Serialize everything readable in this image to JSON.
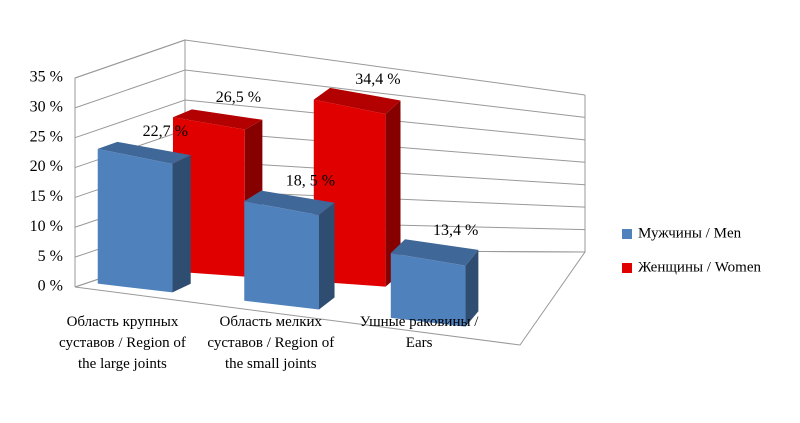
{
  "chart_data": {
    "type": "bar3d",
    "categories": [
      "Область крупных суставов / Region of the large joints",
      "Область мелких суставов / Region of the small joints",
      "Ушные раковины / Ears"
    ],
    "series": [
      {
        "name": "Мужчины / Men",
        "color": "#4f81bd",
        "values": [
          22.7,
          18.5,
          13.4
        ],
        "value_labels": [
          "22,7 %",
          "18, 5 %",
          "13,4 %"
        ]
      },
      {
        "name": "Женщины / Women",
        "color": "#e00000",
        "values": [
          26.5,
          34.4,
          null
        ],
        "value_labels": [
          "26,5 %",
          "34,4 %",
          null
        ]
      }
    ],
    "ylim": [
      0,
      35
    ],
    "yticks": [
      {
        "value": 0,
        "label": "0 %"
      },
      {
        "value": 5,
        "label": "5 %"
      },
      {
        "value": 10,
        "label": "10 %"
      },
      {
        "value": 15,
        "label": "15 %"
      },
      {
        "value": 20,
        "label": "20 %"
      },
      {
        "value": 25,
        "label": "25 %"
      },
      {
        "value": 30,
        "label": "30 %"
      },
      {
        "value": 35,
        "label": "35 %"
      }
    ],
    "grid": true,
    "legend": "right"
  }
}
